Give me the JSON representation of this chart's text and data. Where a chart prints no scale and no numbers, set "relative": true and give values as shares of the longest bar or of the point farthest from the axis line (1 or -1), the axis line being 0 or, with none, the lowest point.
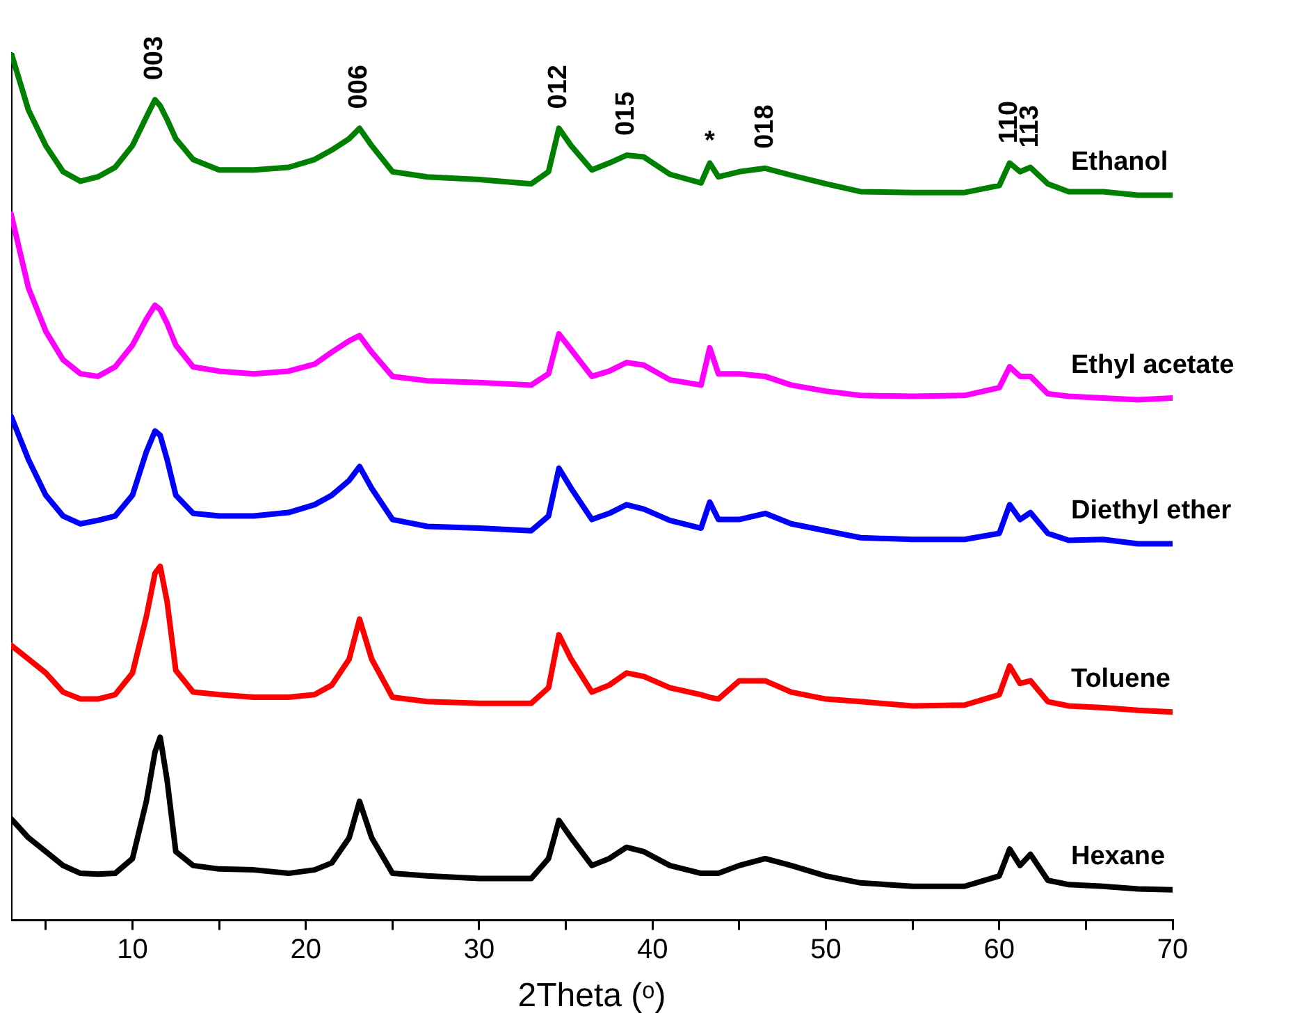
{
  "chart_data": {
    "type": "line",
    "relative": true,
    "xlabel": "2Theta (ᵒ)",
    "xlim": [
      3,
      70
    ],
    "xticks": [
      {
        "value": 5,
        "label": null
      },
      10,
      {
        "value": 15,
        "label": null
      },
      20,
      {
        "value": 25,
        "label": null
      },
      30,
      {
        "value": 35,
        "label": null
      },
      40,
      {
        "value": 45,
        "label": null
      },
      50,
      {
        "value": 55,
        "label": null
      },
      60,
      {
        "value": 65,
        "label": null
      },
      70
    ],
    "x": [
      3,
      4,
      5,
      6,
      7,
      8,
      9,
      10,
      10.8,
      11.3,
      11.6,
      12,
      12.5,
      13.5,
      15,
      17,
      19,
      20.5,
      21.5,
      22.5,
      23.1,
      23.8,
      25,
      27,
      30,
      33,
      34,
      34.6,
      35.3,
      36.5,
      37.5,
      38.5,
      39.5,
      41,
      42.8,
      43.3,
      43.8,
      45,
      46.5,
      48,
      50,
      52,
      55,
      58,
      60,
      60.6,
      61.2,
      61.8,
      62.8,
      64,
      66,
      68,
      70
    ],
    "series": [
      {
        "name": "Ethanol",
        "color": "#008000",
        "values": [
          1.0,
          0.934,
          0.893,
          0.863,
          0.852,
          0.857,
          0.868,
          0.893,
          0.926,
          0.946,
          0.939,
          0.923,
          0.901,
          0.877,
          0.865,
          0.865,
          0.868,
          0.877,
          0.888,
          0.901,
          0.913,
          0.893,
          0.863,
          0.857,
          0.854,
          0.849,
          0.863,
          0.913,
          0.893,
          0.865,
          0.873,
          0.882,
          0.88,
          0.86,
          0.85,
          0.873,
          0.857,
          0.863,
          0.867,
          0.859,
          0.849,
          0.84,
          0.839,
          0.839,
          0.847,
          0.873,
          0.863,
          0.868,
          0.849,
          0.84,
          0.84,
          0.836,
          0.836
        ]
      },
      {
        "name": "Ethyl acetate",
        "color": "#ff00ff",
        "values": [
          0.814,
          0.729,
          0.679,
          0.646,
          0.63,
          0.627,
          0.638,
          0.663,
          0.693,
          0.709,
          0.704,
          0.688,
          0.663,
          0.638,
          0.633,
          0.63,
          0.633,
          0.641,
          0.655,
          0.668,
          0.674,
          0.655,
          0.627,
          0.622,
          0.62,
          0.617,
          0.63,
          0.676,
          0.658,
          0.627,
          0.633,
          0.643,
          0.64,
          0.623,
          0.617,
          0.66,
          0.63,
          0.63,
          0.627,
          0.617,
          0.61,
          0.605,
          0.604,
          0.605,
          0.614,
          0.638,
          0.627,
          0.627,
          0.607,
          0.604,
          0.602,
          0.6,
          0.602
        ]
      },
      {
        "name": "Diethyl ether",
        "color": "#0000ff",
        "values": [
          0.581,
          0.531,
          0.49,
          0.466,
          0.457,
          0.461,
          0.466,
          0.49,
          0.54,
          0.564,
          0.559,
          0.531,
          0.49,
          0.469,
          0.466,
          0.466,
          0.47,
          0.479,
          0.49,
          0.507,
          0.523,
          0.498,
          0.462,
          0.454,
          0.452,
          0.449,
          0.466,
          0.521,
          0.498,
          0.462,
          0.469,
          0.479,
          0.474,
          0.461,
          0.452,
          0.482,
          0.462,
          0.462,
          0.469,
          0.457,
          0.449,
          0.441,
          0.439,
          0.439,
          0.446,
          0.479,
          0.462,
          0.47,
          0.446,
          0.438,
          0.439,
          0.434,
          0.434
        ]
      },
      {
        "name": "Toluene",
        "color": "#ff0000",
        "values": [
          0.317,
          0.301,
          0.285,
          0.263,
          0.255,
          0.255,
          0.26,
          0.285,
          0.35,
          0.4,
          0.408,
          0.367,
          0.288,
          0.263,
          0.26,
          0.257,
          0.257,
          0.26,
          0.271,
          0.301,
          0.347,
          0.301,
          0.257,
          0.252,
          0.25,
          0.25,
          0.268,
          0.329,
          0.301,
          0.263,
          0.271,
          0.285,
          0.281,
          0.268,
          0.26,
          0.257,
          0.255,
          0.276,
          0.276,
          0.263,
          0.255,
          0.252,
          0.247,
          0.248,
          0.26,
          0.293,
          0.273,
          0.276,
          0.252,
          0.247,
          0.245,
          0.242,
          0.24
        ]
      },
      {
        "name": "Hexane",
        "color": "#000000",
        "values": [
          0.117,
          0.095,
          0.079,
          0.063,
          0.054,
          0.053,
          0.054,
          0.071,
          0.137,
          0.194,
          0.211,
          0.161,
          0.079,
          0.063,
          0.059,
          0.058,
          0.054,
          0.058,
          0.066,
          0.095,
          0.137,
          0.095,
          0.054,
          0.051,
          0.048,
          0.048,
          0.071,
          0.115,
          0.095,
          0.063,
          0.071,
          0.084,
          0.079,
          0.063,
          0.054,
          0.054,
          0.054,
          0.063,
          0.071,
          0.063,
          0.051,
          0.043,
          0.039,
          0.039,
          0.051,
          0.082,
          0.063,
          0.076,
          0.046,
          0.041,
          0.039,
          0.036,
          0.035
        ]
      }
    ],
    "annotations": [
      {
        "text": "003",
        "x": 11.3,
        "y": 0.946
      },
      {
        "text": "006",
        "x": 23.1,
        "y": 0.913
      },
      {
        "text": "012",
        "x": 34.6,
        "y": 0.913
      },
      {
        "text": "015",
        "x": 38.5,
        "y": 0.882
      },
      {
        "text": "*",
        "x": 43.3,
        "y": 0.873
      },
      {
        "text": "018",
        "x": 46.5,
        "y": 0.867
      },
      {
        "text": "110",
        "x": 60.6,
        "y": 0.873
      },
      {
        "text": "113",
        "x": 61.8,
        "y": 0.868
      }
    ],
    "legend": false,
    "grid": false,
    "marker": "none",
    "line_style": "solid"
  }
}
